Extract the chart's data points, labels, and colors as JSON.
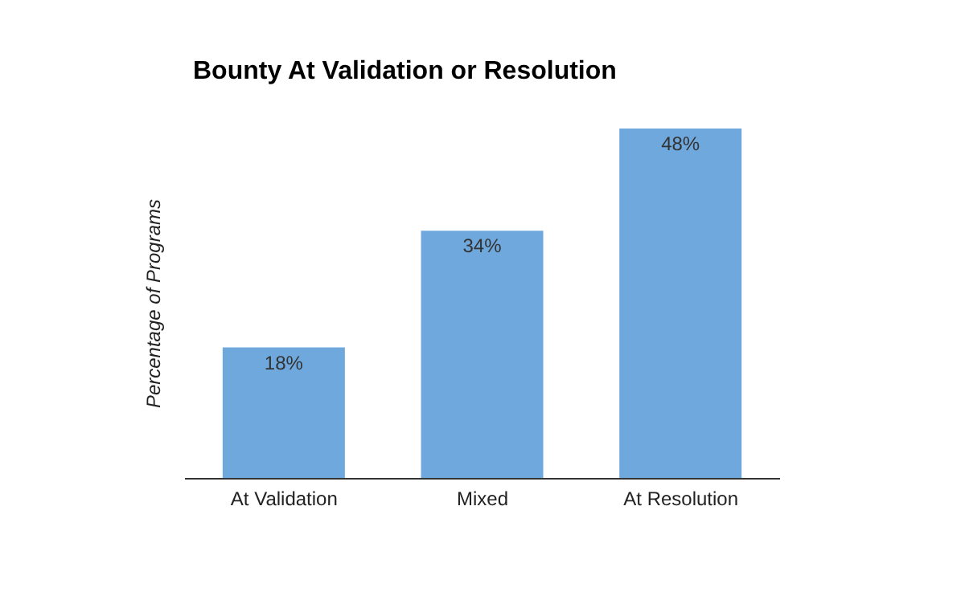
{
  "chart_data": {
    "type": "bar",
    "title": "Bounty At Validation or Resolution",
    "ylabel": "Percentage of Programs",
    "categories": [
      "At Validation",
      "Mixed",
      "At Resolution"
    ],
    "values": [
      18,
      34,
      48
    ],
    "value_labels": [
      "18%",
      "34%",
      "48%"
    ],
    "color": "#6fa8dc",
    "tick_labels": "x"
  }
}
